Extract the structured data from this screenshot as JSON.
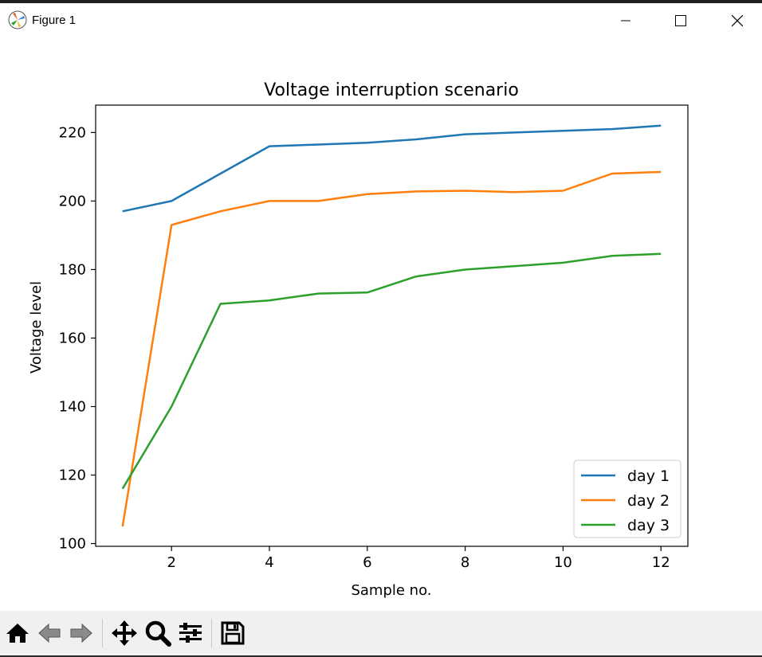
{
  "window": {
    "title": "Figure 1",
    "buttons": {
      "minimize": "minimize",
      "maximize": "maximize",
      "close": "close"
    }
  },
  "toolbar": {
    "items": [
      "home-icon",
      "back-icon",
      "forward-icon",
      "pan-icon",
      "zoom-icon",
      "configure-icon",
      "save-icon"
    ]
  },
  "chart_data": {
    "type": "line",
    "title": "Voltage interruption scenario",
    "xlabel": "Sample no.",
    "ylabel": "Voltage level",
    "xlim": [
      0.45,
      12.55
    ],
    "ylim": [
      99.2,
      228
    ],
    "xticks": [
      2,
      4,
      6,
      8,
      10,
      12
    ],
    "yticks": [
      100,
      120,
      140,
      160,
      180,
      200,
      220
    ],
    "grid": false,
    "legend": "lower-right",
    "x": [
      1,
      2,
      3,
      4,
      5,
      6,
      7,
      8,
      9,
      10,
      11,
      12
    ],
    "series": [
      {
        "name": "day 1",
        "color": "#1f77b4",
        "values": [
          197,
          200,
          208,
          216,
          216.5,
          217,
          218,
          219.5,
          220,
          220.5,
          221,
          222
        ]
      },
      {
        "name": "day 2",
        "color": "#ff7f0e",
        "values": [
          105,
          193,
          197,
          200,
          200,
          202,
          202.8,
          203,
          202.6,
          203,
          208,
          208.5
        ]
      },
      {
        "name": "day 3",
        "color": "#2ca02c",
        "values": [
          116,
          140,
          170,
          171,
          173,
          173.3,
          178,
          180,
          181,
          182,
          184,
          184.6
        ]
      }
    ]
  }
}
